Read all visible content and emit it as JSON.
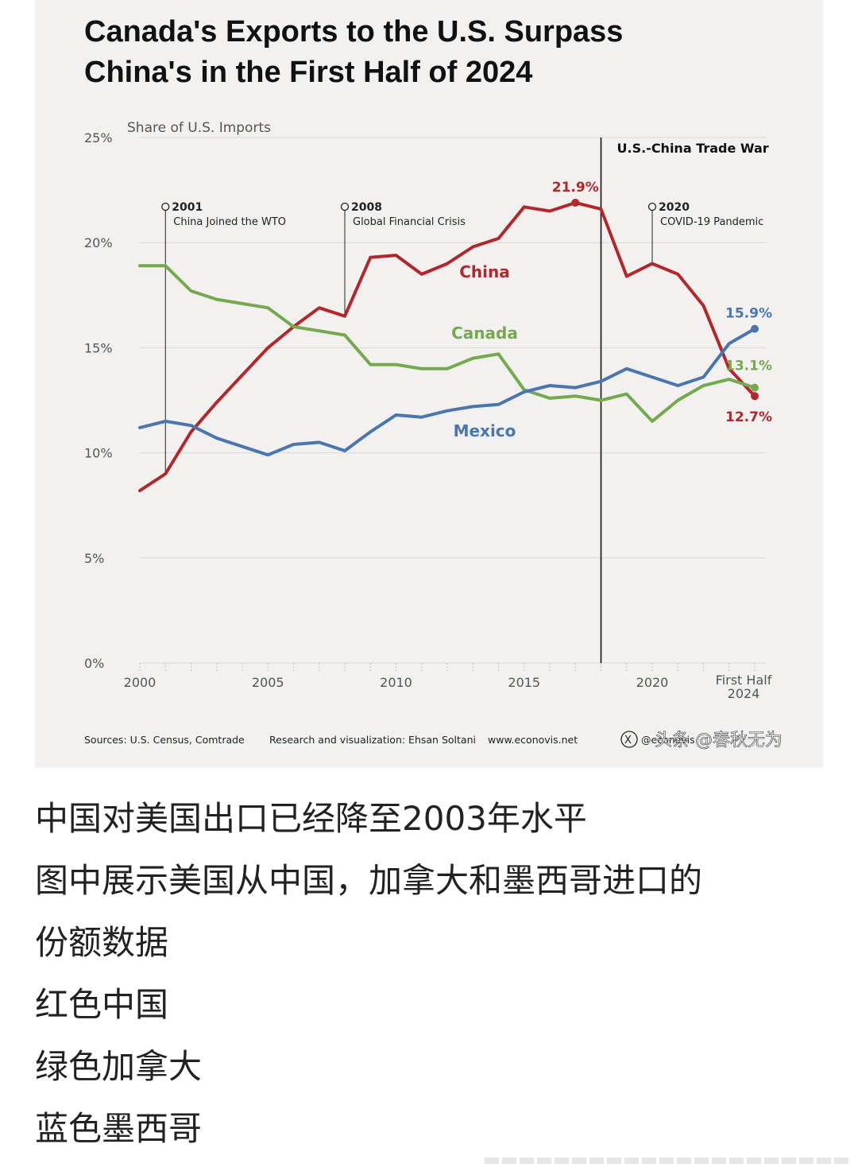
{
  "chart_data": {
    "type": "line",
    "title": "Canada's Exports to the U.S. Surpass China's in the First Half of 2024",
    "title_lines": [
      "Canada's Exports to the U.S. Surpass",
      "China's in the First Half of 2024"
    ],
    "ylabel": "Share of U.S. Imports",
    "ylim": [
      0,
      25
    ],
    "y_ticks": [
      "0%",
      "5%",
      "10%",
      "15%",
      "20%",
      "25%"
    ],
    "y_tick_values": [
      0,
      5,
      10,
      15,
      20,
      25
    ],
    "x_ticks": [
      "2000",
      "2005",
      "2010",
      "2015",
      "2020"
    ],
    "x_tick_values": [
      2000,
      2005,
      2010,
      2015,
      2020
    ],
    "x_last_label": [
      "First Half",
      "2024"
    ],
    "x": [
      2000,
      2001,
      2002,
      2003,
      2004,
      2005,
      2006,
      2007,
      2008,
      2009,
      2010,
      2011,
      2012,
      2013,
      2014,
      2015,
      2016,
      2017,
      2018,
      2019,
      2020,
      2021,
      2022,
      2023,
      2024
    ],
    "series": [
      {
        "name": "China",
        "color": "#b3262c",
        "values": [
          8.2,
          9.0,
          11.0,
          12.4,
          13.7,
          15.0,
          16.0,
          16.9,
          16.5,
          19.3,
          19.4,
          18.5,
          19.0,
          19.8,
          20.2,
          21.7,
          21.5,
          21.9,
          21.6,
          18.4,
          19.0,
          18.5,
          17.0,
          14.0,
          12.7
        ]
      },
      {
        "name": "Canada",
        "color": "#74a94e",
        "values": [
          18.9,
          18.9,
          17.7,
          17.3,
          17.1,
          16.9,
          16.0,
          15.8,
          15.6,
          14.2,
          14.2,
          14.0,
          14.0,
          14.5,
          14.7,
          13.0,
          12.6,
          12.7,
          12.5,
          12.8,
          11.5,
          12.5,
          13.2,
          13.5,
          13.1
        ]
      },
      {
        "name": "Mexico",
        "color": "#4a76b0",
        "values": [
          11.2,
          11.5,
          11.3,
          10.7,
          10.3,
          9.9,
          10.4,
          10.5,
          10.1,
          11.0,
          11.8,
          11.7,
          12.0,
          12.2,
          12.3,
          12.9,
          13.2,
          13.1,
          13.4,
          14.0,
          13.6,
          13.2,
          13.6,
          15.2,
          15.9
        ]
      }
    ],
    "end_labels": {
      "China": "12.7%",
      "Canada": "13.1%",
      "Mexico": "15.9%"
    },
    "peak_label": {
      "series": "China",
      "x": 2017,
      "text": "21.9%"
    },
    "annotations": [
      {
        "x": 2001,
        "year": "2001",
        "text": "China Joined the WTO"
      },
      {
        "x": 2008,
        "year": "2008",
        "text": "Global Financial Crisis"
      },
      {
        "x": 2020,
        "year": "2020",
        "text": "COVID-19 Pandemic"
      }
    ],
    "trade_war": {
      "x": 2018,
      "label": "U.S.-China Trade War"
    },
    "grid": true,
    "legend": "inline labels"
  },
  "footer": {
    "sources": "Sources: U.S. Census, Comtrade",
    "credit": "Research and visualization: Ehsan Soltani",
    "site": "www.econovis.net",
    "social": "@econovis"
  },
  "watermark": "头条 @春秋无为",
  "caption": [
    "中国对美国出口已经降至2003年水平",
    "图中展示美国从中国，加拿大和墨西哥进口的",
    "份额数据",
    "红色中国",
    "绿色加拿大",
    "蓝色墨西哥"
  ]
}
